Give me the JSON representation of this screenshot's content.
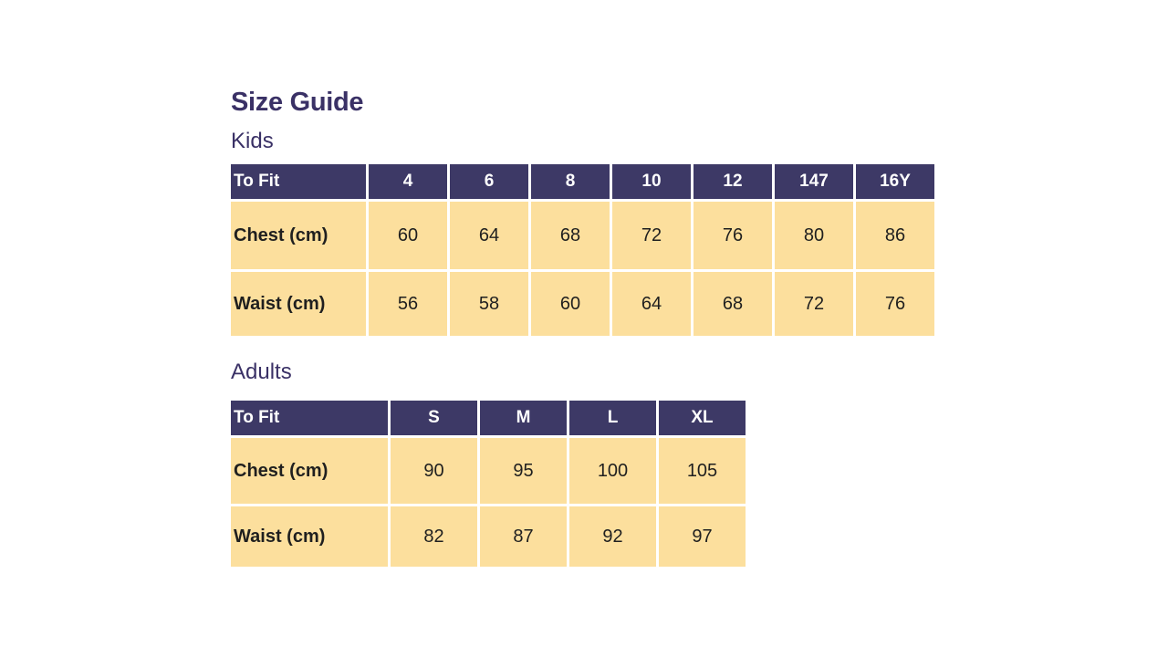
{
  "title": "Size Guide",
  "colors": {
    "header_bg": "#3d3966",
    "header_text": "#ffffff",
    "cell_bg": "#fcdf9d",
    "cell_text": "#1f1f1f",
    "heading_text": "#3a3166",
    "page_bg": "#ffffff"
  },
  "sections": [
    {
      "label": "Kids",
      "table": {
        "header": [
          "To Fit",
          "4",
          "6",
          "8",
          "10",
          "12",
          "147",
          "16Y"
        ],
        "rows": [
          {
            "label": "Chest (cm)",
            "values": [
              "60",
              "64",
              "68",
              "72",
              "76",
              "80",
              "86"
            ]
          },
          {
            "label": "Waist (cm)",
            "values": [
              "56",
              "58",
              "60",
              "64",
              "68",
              "72",
              "76"
            ]
          }
        ]
      }
    },
    {
      "label": "Adults",
      "table": {
        "header": [
          "To Fit",
          "S",
          "M",
          "L",
          "XL"
        ],
        "rows": [
          {
            "label": "Chest (cm)",
            "values": [
              "90",
              "95",
              "100",
              "105"
            ]
          },
          {
            "label": "Waist (cm)",
            "values": [
              "82",
              "87",
              "92",
              "97"
            ]
          }
        ]
      }
    }
  ]
}
